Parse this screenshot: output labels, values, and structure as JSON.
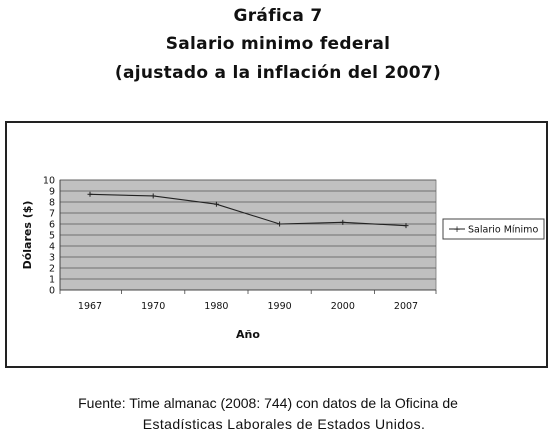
{
  "figure": {
    "label": "Gráfica 7",
    "title": "Salario minimo federal",
    "subtitle": "(ajustado a la inflación del 2007)"
  },
  "source": {
    "line1": "Fuente: Time almanac (2008: 744) con datos de la Oficina de",
    "line2": "Estadísticas Laborales de  Estados Unidos."
  },
  "chart_data": {
    "type": "line",
    "categories": [
      "1967",
      "1970",
      "1980",
      "1990",
      "2000",
      "2007"
    ],
    "series": [
      {
        "name": "Salario Mínimo",
        "values": [
          8.7,
          8.55,
          7.8,
          6.0,
          6.15,
          5.85
        ],
        "color": "#222222"
      }
    ],
    "xlabel": "Año",
    "ylabel": "Dólares ($)",
    "ylim": [
      0,
      10
    ],
    "yticks": [
      0,
      1,
      2,
      3,
      4,
      5,
      6,
      7,
      8,
      9,
      10
    ],
    "grid": true,
    "plot_background": "#c0c0c0",
    "legend_position": "right"
  }
}
